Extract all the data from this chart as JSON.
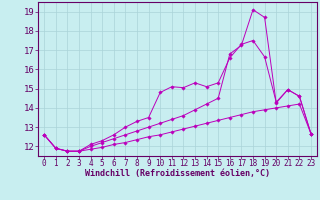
{
  "background_color": "#c8eef0",
  "line_color": "#bb00bb",
  "grid_color": "#aad4d8",
  "xlabel": "Windchill (Refroidissement éolien,°C)",
  "xlabel_fontsize": 6.0,
  "ytick_fontsize": 6.5,
  "xtick_fontsize": 5.5,
  "xtick_labels": [
    "0",
    "1",
    "2",
    "3",
    "4",
    "5",
    "6",
    "7",
    "8",
    "9",
    "10",
    "11",
    "12",
    "13",
    "14",
    "15",
    "16",
    "17",
    "18",
    "19",
    "20",
    "21",
    "22",
    "23"
  ],
  "ylim": [
    11.5,
    19.5
  ],
  "yticks": [
    12,
    13,
    14,
    15,
    16,
    17,
    18,
    19
  ],
  "line1_x": [
    0,
    1,
    2,
    3,
    4,
    5,
    6,
    7,
    8,
    9,
    10,
    11,
    12,
    13,
    14,
    15,
    16,
    17,
    18,
    19,
    20,
    21,
    22,
    23
  ],
  "line1_y": [
    12.6,
    11.9,
    11.75,
    11.75,
    11.85,
    11.95,
    12.1,
    12.2,
    12.35,
    12.5,
    12.6,
    12.75,
    12.9,
    13.05,
    13.2,
    13.35,
    13.5,
    13.65,
    13.8,
    13.9,
    14.0,
    14.1,
    14.2,
    12.65
  ],
  "line2_x": [
    0,
    1,
    2,
    3,
    4,
    5,
    6,
    7,
    8,
    9,
    10,
    11,
    12,
    13,
    14,
    15,
    16,
    17,
    18,
    19,
    20,
    21,
    22,
    23
  ],
  "line2_y": [
    12.6,
    11.9,
    11.75,
    11.75,
    12.1,
    12.3,
    12.6,
    13.0,
    13.3,
    13.5,
    14.8,
    15.1,
    15.05,
    15.3,
    15.1,
    15.3,
    16.6,
    17.3,
    17.5,
    16.65,
    14.3,
    14.95,
    14.6,
    12.65
  ],
  "line3_x": [
    0,
    1,
    2,
    3,
    4,
    5,
    6,
    7,
    8,
    9,
    10,
    11,
    12,
    13,
    14,
    15,
    16,
    17,
    18,
    19,
    20,
    21,
    22,
    23
  ],
  "line3_y": [
    12.6,
    11.9,
    11.75,
    11.75,
    12.0,
    12.2,
    12.4,
    12.6,
    12.8,
    13.0,
    13.2,
    13.4,
    13.6,
    13.9,
    14.2,
    14.5,
    16.8,
    17.25,
    19.1,
    18.7,
    14.25,
    14.95,
    14.6,
    12.65
  ]
}
